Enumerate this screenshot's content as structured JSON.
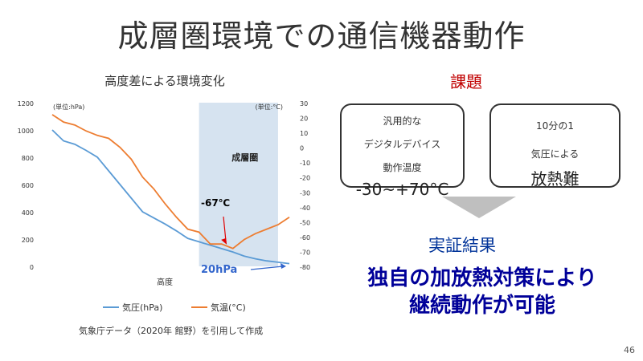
{
  "slide": {
    "title": "成層圏環境での通信機器動作",
    "source": "気象庁データ（2020年 館野）を引用して作成",
    "page_number": "46"
  },
  "issues": {
    "heading": "課題",
    "box1": {
      "line1": "汎用的な",
      "line2": "デジタルデバイス",
      "line3": "動作温度",
      "value": "-30~+70°C"
    },
    "box2": {
      "line1": "10分の1",
      "line2": "気圧による",
      "value": "放熱難"
    }
  },
  "result": {
    "heading": "実証結果",
    "line1": "独自の加放熱対策により",
    "line2": "継続動作が可能"
  },
  "chart_data": {
    "type": "line",
    "title": "高度差による環境変化",
    "xlabel": "高度",
    "y_left_unit": "(単位:hPa)",
    "y_right_unit": "(単位:°C)",
    "y_left_range": [
      0,
      1200
    ],
    "y_left_ticks": [
      0,
      200,
      400,
      600,
      800,
      1000,
      1200
    ],
    "y_right_range": [
      -80,
      30
    ],
    "y_right_ticks": [
      -80,
      -70,
      -60,
      -50,
      -40,
      -30,
      -20,
      -10,
      0,
      10,
      20,
      30
    ],
    "shaded_region": {
      "label": "成層圏",
      "x_from": 13,
      "x_to": 20
    },
    "series": [
      {
        "name": "気圧(hPa)",
        "color": "#5b9bd5",
        "axis": "left",
        "values": [
          1000,
          920,
          895,
          850,
          800,
          700,
          600,
          500,
          400,
          355,
          310,
          260,
          205,
          180,
          155,
          130,
          105,
          75,
          55,
          40,
          30,
          20
        ]
      },
      {
        "name": "気温(°C)",
        "color": "#ed7d31",
        "axis": "right",
        "values": [
          22,
          17,
          15,
          11,
          8,
          6,
          0,
          -8,
          -20,
          -28,
          -38,
          -47,
          -55,
          -57,
          -65,
          -65,
          -68,
          -62,
          -58,
          -55,
          -52,
          -47
        ]
      }
    ],
    "annotations": [
      {
        "text": "-67℃",
        "color": "#000000",
        "x": 15.6,
        "y_right": -67
      },
      {
        "text": "20hPa",
        "color": "#3366cc",
        "x": 20.5,
        "y_left": 20
      }
    ],
    "legend_position": "bottom"
  }
}
